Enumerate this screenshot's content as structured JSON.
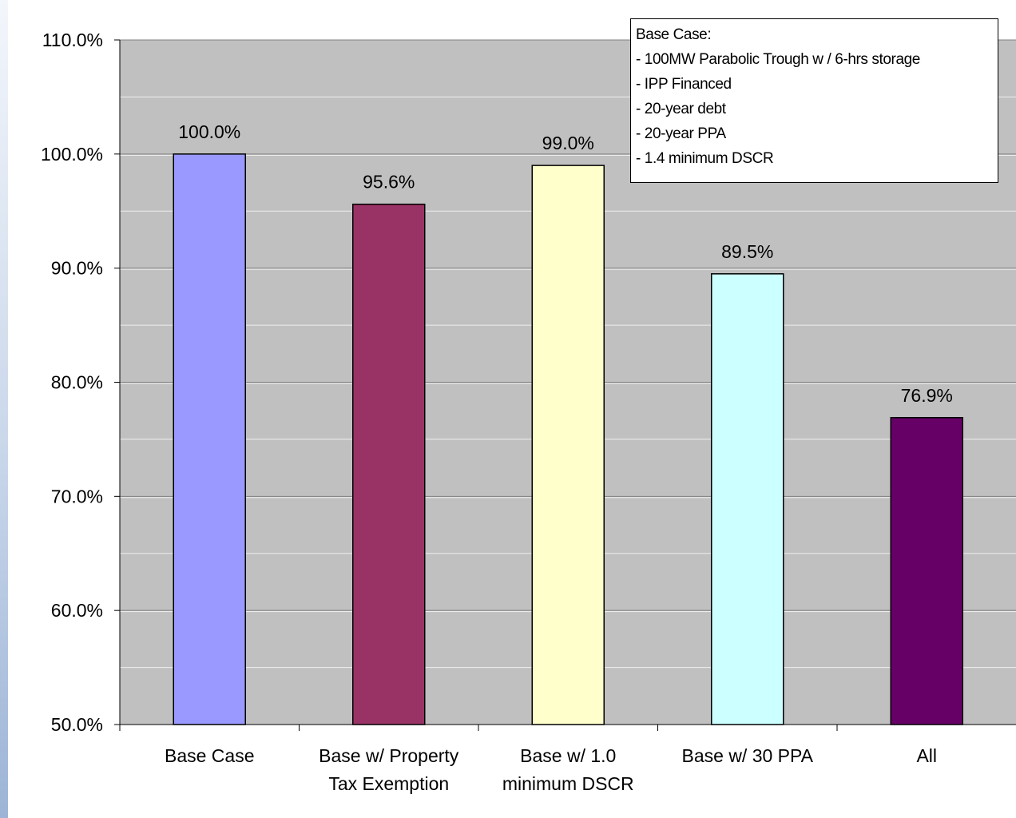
{
  "chart_data": {
    "type": "bar",
    "categories": [
      [
        "Base Case"
      ],
      [
        "Base w/ Property",
        "Tax Exemption"
      ],
      [
        "Base w/ 1.0",
        "minimum DSCR"
      ],
      [
        "Base w/ 30 PPA"
      ],
      [
        "All"
      ]
    ],
    "values": [
      100.0,
      95.6,
      99.0,
      89.5,
      76.9
    ],
    "data_labels": [
      "100.0%",
      "95.6%",
      "99.0%",
      "89.5%",
      "76.9%"
    ],
    "bar_colors": [
      "#9999ff",
      "#993366",
      "#ffffcc",
      "#ccffff",
      "#660066"
    ],
    "ylim": [
      50,
      110
    ],
    "yticks": [
      50,
      60,
      70,
      80,
      90,
      100,
      110
    ],
    "ytick_labels": [
      "50.0%",
      "60.0%",
      "70.0%",
      "80.0%",
      "90.0%",
      "100.0%",
      "110.0%"
    ],
    "grid": true,
    "plot_background": "#c0c0c0",
    "title": "",
    "xlabel": "",
    "ylabel": "",
    "legend_position": "top-right"
  },
  "legend": {
    "title": "Base Case:",
    "lines": [
      "- 100MW Parabolic Trough w / 6-hrs storage",
      "- IPP Financed",
      "- 20-year debt",
      "- 20-year PPA",
      "- 1.4 minimum DSCR"
    ]
  }
}
